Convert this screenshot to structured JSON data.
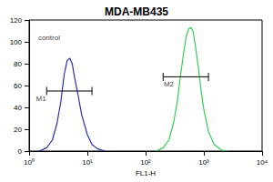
{
  "chart_data": {
    "type": "line",
    "title": "MDA-MB435",
    "x_label": "FL1-H",
    "log": "x",
    "xlim": [
      1,
      10000
    ],
    "xticks": [
      {
        "value": 1,
        "label": "10⁰"
      },
      {
        "value": 10,
        "label": "10¹"
      },
      {
        "value": 100,
        "label": "10²"
      },
      {
        "value": 1000,
        "label": "10³"
      },
      {
        "value": 10000,
        "label": "10⁴"
      }
    ],
    "ylim": [
      0,
      120
    ],
    "yticks": [
      0,
      20,
      40,
      60,
      80,
      100,
      120
    ],
    "series": [
      {
        "color": "#2233aa",
        "x": [
          1.5,
          2,
          2.5,
          3,
          3.5,
          4,
          4.5,
          5,
          5.5,
          6,
          7,
          8,
          10,
          12,
          15,
          20
        ],
        "values": [
          0,
          3,
          10,
          25,
          45,
          70,
          83,
          85,
          80,
          68,
          50,
          33,
          15,
          6,
          2,
          0
        ]
      },
      {
        "color": "#33cc55",
        "x": [
          150,
          200,
          250,
          300,
          350,
          400,
          450,
          500,
          550,
          600,
          650,
          700,
          800,
          900,
          1000,
          1200,
          1500,
          2000,
          2500
        ],
        "values": [
          0,
          3,
          10,
          25,
          45,
          70,
          90,
          105,
          112,
          113,
          110,
          100,
          78,
          55,
          38,
          18,
          6,
          1,
          0
        ]
      }
    ],
    "annotations": [
      {
        "text": "control",
        "x": 2.2,
        "y": 104
      },
      {
        "text": "M1",
        "x": 1.6,
        "y": 48
      },
      {
        "text": "M2",
        "x": 250,
        "y": 61
      }
    ],
    "markers": [
      {
        "label": "M1",
        "x": [
          2,
          12
        ],
        "y": 55
      },
      {
        "label": "M2",
        "x": [
          200,
          1200
        ],
        "y": 68
      }
    ]
  }
}
